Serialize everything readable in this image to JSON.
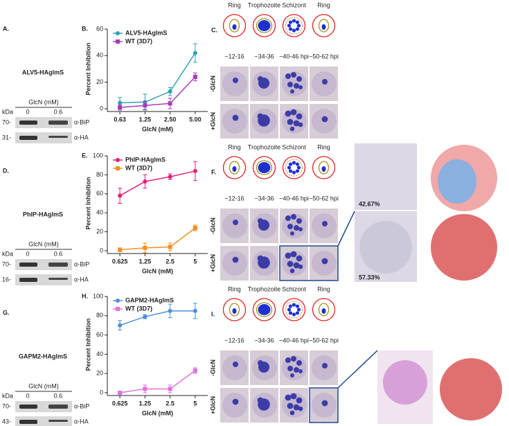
{
  "blots": [
    {
      "label": "A.",
      "name": "ALV5-HAglmS",
      "treatment": "GlcN (mM)",
      "kda": "kDa",
      "lanes": [
        "0",
        "0.6"
      ],
      "rows": [
        {
          "marker": "70-",
          "antibody": "α-BiP"
        },
        {
          "marker": "31-",
          "antibody": "α-HA"
        }
      ]
    },
    {
      "label": "D.",
      "name": "PhIP-HAglmS",
      "treatment": "GlcN (mM)",
      "kda": "kDa",
      "lanes": [
        "0",
        "0.6"
      ],
      "rows": [
        {
          "marker": "70-",
          "antibody": "α-BiP"
        },
        {
          "marker": "16-",
          "antibody": "α-HA"
        }
      ]
    },
    {
      "label": "G.",
      "name": "GAPM2-HAglmS",
      "treatment": "GlcN (mM)",
      "kda": "kDa",
      "lanes": [
        "0",
        "0.6"
      ],
      "rows": [
        {
          "marker": "70-",
          "antibody": "α-BiP"
        },
        {
          "marker": "43-",
          "antibody": "α-HA"
        }
      ]
    }
  ],
  "chart_data": [
    {
      "type": "line",
      "label": "B.",
      "x_label": "GlcN (mM)",
      "y_label": "Percent Inhibition",
      "categories": [
        "0.63",
        "1.25",
        "2.50",
        "5.00"
      ],
      "ylim": [
        0,
        60
      ],
      "yticks": [
        0,
        20,
        40,
        60
      ],
      "legend": "upper-left",
      "series": [
        {
          "name": "ALV5-HAglmS",
          "color": "#2ea0b4",
          "values": [
            4.5,
            5,
            13,
            42
          ],
          "errors": [
            4,
            6,
            3,
            7
          ]
        },
        {
          "name": "WT (3D7)",
          "color": "#a63cb8",
          "values": [
            1,
            2.5,
            4,
            24
          ],
          "errors": [
            2,
            3,
            4,
            3
          ]
        }
      ]
    },
    {
      "type": "line",
      "label": "E.",
      "x_label": "GlcN (mM)",
      "y_label": "Percent Inhibition",
      "categories": [
        "0.625",
        "1.25",
        "2.5",
        "5"
      ],
      "ylim": [
        0,
        100
      ],
      "yticks": [
        0,
        20,
        40,
        60,
        80,
        100
      ],
      "legend": "upper-left",
      "series": [
        {
          "name": "PhIP-HAglmS",
          "color": "#e0207a",
          "values": [
            58,
            73,
            78,
            84
          ],
          "errors": [
            8,
            7,
            3,
            10
          ]
        },
        {
          "name": "WT (3D7)",
          "color": "#f39020",
          "values": [
            1,
            3,
            4,
            24
          ],
          "errors": [
            2,
            5,
            4,
            3
          ]
        }
      ]
    },
    {
      "type": "line",
      "label": "H.",
      "x_label": "GlcN (mM)",
      "y_label": "Percent Inhibition",
      "categories": [
        "0.625",
        "1.25",
        "2.5",
        "5"
      ],
      "ylim": [
        0,
        100
      ],
      "yticks": [
        0,
        20,
        40,
        60,
        80,
        100
      ],
      "legend": "upper-left",
      "series": [
        {
          "name": "GAPM2-HAglmS",
          "color": "#4a90d9",
          "values": [
            70,
            79,
            85,
            85
          ],
          "errors": [
            5,
            2,
            7,
            8
          ]
        },
        {
          "name": "WT (3D7)",
          "color": "#e070e0",
          "values": [
            0,
            4,
            4,
            23
          ],
          "errors": [
            1,
            4,
            4,
            3
          ]
        }
      ]
    }
  ],
  "micrographs": [
    {
      "label": "C.",
      "stages": [
        "Ring",
        "Trophozoite",
        "Schizont",
        "Ring"
      ],
      "times": [
        "~12-16",
        "~34-36",
        "~40-46 hpi",
        "~50-62 hpi"
      ],
      "conditions": [
        "-GlcN",
        "+GlcN"
      ]
    },
    {
      "label": "F.",
      "stages": [
        "Ring",
        "Trophozoite",
        "Schizont",
        "Ring"
      ],
      "times": [
        "~12-16",
        "~34-36",
        "~40-46 hpi",
        "~50-62 hpi"
      ],
      "conditions": [
        "-GlcN",
        "+GlcN"
      ],
      "percentages": [
        "42.67%",
        "57.33%"
      ]
    },
    {
      "label": "I.",
      "stages": [
        "Ring",
        "Trophozoite",
        "Schizont",
        "Ring"
      ],
      "times": [
        "~12-16",
        "~34-36",
        "~40-46 hpi",
        "~50-62 hpi"
      ],
      "conditions": [
        "-GlcN",
        "+GlcN"
      ]
    }
  ]
}
